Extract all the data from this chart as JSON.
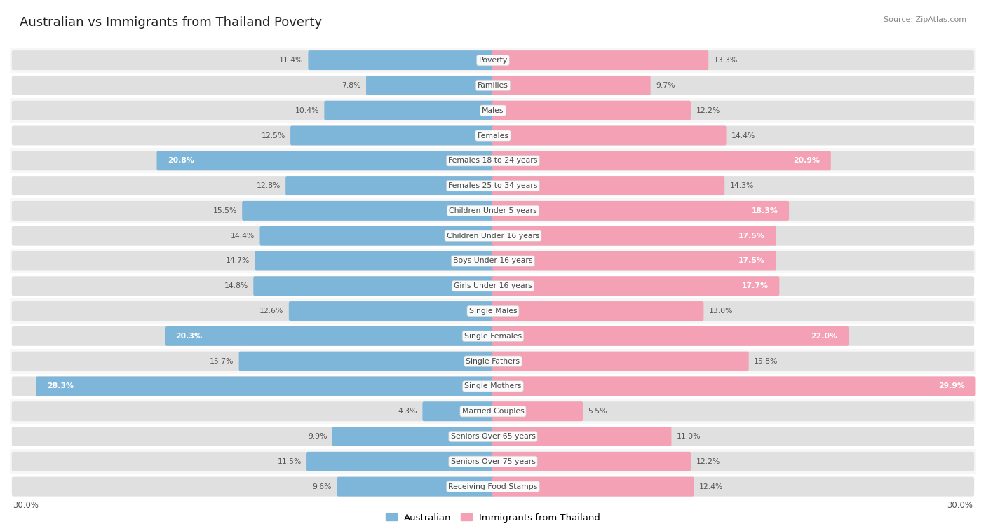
{
  "title": "Australian vs Immigrants from Thailand Poverty",
  "source": "Source: ZipAtlas.com",
  "x_max": 30.0,
  "legend_labels": [
    "Australian",
    "Immigrants from Thailand"
  ],
  "bar_color_australian": "#7eb6d9",
  "bar_color_thailand": "#f4a0b5",
  "categories": [
    "Poverty",
    "Families",
    "Males",
    "Females",
    "Females 18 to 24 years",
    "Females 25 to 34 years",
    "Children Under 5 years",
    "Children Under 16 years",
    "Boys Under 16 years",
    "Girls Under 16 years",
    "Single Males",
    "Single Females",
    "Single Fathers",
    "Single Mothers",
    "Married Couples",
    "Seniors Over 65 years",
    "Seniors Over 75 years",
    "Receiving Food Stamps"
  ],
  "australian": [
    11.4,
    7.8,
    10.4,
    12.5,
    20.8,
    12.8,
    15.5,
    14.4,
    14.7,
    14.8,
    12.6,
    20.3,
    15.7,
    28.3,
    4.3,
    9.9,
    11.5,
    9.6
  ],
  "thailand": [
    13.3,
    9.7,
    12.2,
    14.4,
    20.9,
    14.3,
    18.3,
    17.5,
    17.5,
    17.7,
    13.0,
    22.0,
    15.8,
    29.9,
    5.5,
    11.0,
    12.2,
    12.4
  ],
  "high_threshold_aus": 17.0,
  "high_threshold_thai": 17.0,
  "row_color_even": "#f7f7f7",
  "row_color_odd": "#ffffff",
  "bar_bg_color": "#e0e0e0",
  "fig_bg": "#ffffff",
  "title_color": "#222222",
  "source_color": "#888888",
  "label_dark": "#555555",
  "label_light": "#ffffff",
  "center_label_color": "#444444",
  "separator_color": "#dddddd"
}
